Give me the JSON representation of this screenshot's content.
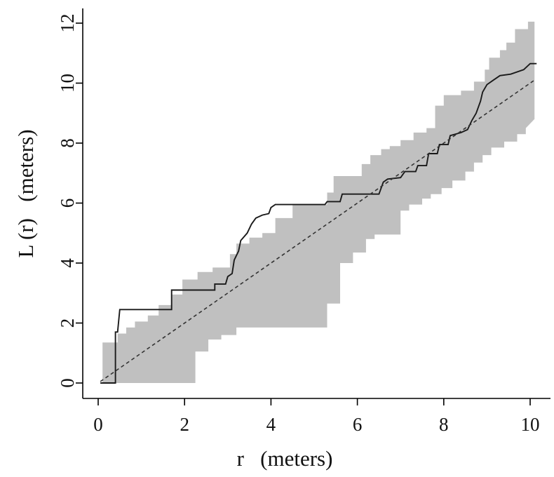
{
  "chart_data": {
    "type": "line",
    "title": "",
    "xlabel": "r   (meters)",
    "ylabel": "L (r)   (meters)",
    "xlim": [
      -0.5,
      10.5
    ],
    "ylim": [
      -0.5,
      12.3
    ],
    "xticks": [
      0,
      2,
      4,
      6,
      8,
      10
    ],
    "yticks": [
      0,
      2,
      4,
      6,
      8,
      10,
      12
    ],
    "x_tick_labels": [
      "0",
      "2",
      "4",
      "6",
      "8",
      "10"
    ],
    "y_tick_labels": [
      "0",
      "2",
      "4",
      "6",
      "8",
      "10",
      "12"
    ],
    "grid": false,
    "legend": "none",
    "colors": {
      "envelope": "#c0c0c0",
      "observed": "#1a1a1a",
      "expected": "#333333"
    },
    "envelope_upper": [
      [
        0.1,
        1.35
      ],
      [
        0.45,
        1.35
      ],
      [
        0.45,
        1.65
      ],
      [
        0.65,
        1.65
      ],
      [
        0.65,
        1.85
      ],
      [
        0.85,
        1.85
      ],
      [
        0.85,
        2.05
      ],
      [
        1.15,
        2.05
      ],
      [
        1.15,
        2.25
      ],
      [
        1.4,
        2.25
      ],
      [
        1.4,
        2.6
      ],
      [
        1.7,
        2.6
      ],
      [
        1.7,
        2.95
      ],
      [
        1.95,
        2.95
      ],
      [
        1.95,
        3.45
      ],
      [
        2.3,
        3.45
      ],
      [
        2.3,
        3.7
      ],
      [
        2.65,
        3.7
      ],
      [
        2.65,
        3.85
      ],
      [
        3.05,
        3.85
      ],
      [
        3.05,
        4.3
      ],
      [
        3.2,
        4.3
      ],
      [
        3.2,
        4.65
      ],
      [
        3.5,
        4.65
      ],
      [
        3.5,
        4.85
      ],
      [
        3.8,
        4.85
      ],
      [
        3.8,
        5.0
      ],
      [
        4.1,
        5.0
      ],
      [
        4.1,
        5.5
      ],
      [
        4.5,
        5.5
      ],
      [
        4.5,
        5.95
      ],
      [
        5.3,
        5.95
      ],
      [
        5.3,
        6.35
      ],
      [
        5.45,
        6.35
      ],
      [
        5.45,
        6.9
      ],
      [
        6.1,
        6.9
      ],
      [
        6.1,
        7.3
      ],
      [
        6.3,
        7.3
      ],
      [
        6.3,
        7.6
      ],
      [
        6.55,
        7.6
      ],
      [
        6.55,
        7.8
      ],
      [
        6.75,
        7.8
      ],
      [
        6.75,
        7.9
      ],
      [
        7.0,
        7.9
      ],
      [
        7.0,
        8.1
      ],
      [
        7.3,
        8.1
      ],
      [
        7.3,
        8.35
      ],
      [
        7.6,
        8.35
      ],
      [
        7.6,
        8.5
      ],
      [
        7.8,
        8.5
      ],
      [
        7.8,
        8.9
      ],
      [
        7.8,
        9.25
      ],
      [
        8.0,
        9.25
      ],
      [
        8.0,
        9.6
      ],
      [
        8.4,
        9.6
      ],
      [
        8.4,
        9.75
      ],
      [
        8.7,
        9.75
      ],
      [
        8.7,
        10.05
      ],
      [
        8.95,
        10.05
      ],
      [
        8.95,
        10.45
      ],
      [
        9.05,
        10.45
      ],
      [
        9.05,
        10.85
      ],
      [
        9.3,
        10.85
      ],
      [
        9.3,
        11.1
      ],
      [
        9.45,
        11.1
      ],
      [
        9.45,
        11.35
      ],
      [
        9.65,
        11.35
      ],
      [
        9.65,
        11.8
      ],
      [
        9.95,
        11.8
      ],
      [
        9.95,
        12.05
      ],
      [
        10.1,
        12.05
      ]
    ],
    "envelope_lower": [
      [
        0.1,
        0.0
      ],
      [
        2.25,
        0.0
      ],
      [
        2.25,
        1.05
      ],
      [
        2.55,
        1.05
      ],
      [
        2.55,
        1.45
      ],
      [
        2.85,
        1.45
      ],
      [
        2.85,
        1.6
      ],
      [
        3.2,
        1.6
      ],
      [
        3.2,
        1.85
      ],
      [
        5.3,
        1.85
      ],
      [
        5.3,
        2.65
      ],
      [
        5.6,
        2.65
      ],
      [
        5.6,
        4.0
      ],
      [
        5.9,
        4.0
      ],
      [
        5.9,
        4.35
      ],
      [
        6.2,
        4.35
      ],
      [
        6.2,
        4.8
      ],
      [
        6.4,
        4.8
      ],
      [
        6.4,
        4.95
      ],
      [
        7.0,
        4.95
      ],
      [
        7.0,
        5.75
      ],
      [
        7.2,
        5.75
      ],
      [
        7.2,
        5.95
      ],
      [
        7.5,
        5.95
      ],
      [
        7.5,
        6.15
      ],
      [
        7.7,
        6.15
      ],
      [
        7.7,
        6.3
      ],
      [
        7.95,
        6.3
      ],
      [
        7.95,
        6.5
      ],
      [
        8.2,
        6.5
      ],
      [
        8.2,
        6.75
      ],
      [
        8.5,
        6.75
      ],
      [
        8.5,
        7.05
      ],
      [
        8.7,
        7.05
      ],
      [
        8.7,
        7.35
      ],
      [
        8.9,
        7.35
      ],
      [
        8.9,
        7.6
      ],
      [
        9.1,
        7.6
      ],
      [
        9.1,
        7.85
      ],
      [
        9.4,
        7.85
      ],
      [
        9.4,
        8.05
      ],
      [
        9.7,
        8.05
      ],
      [
        9.7,
        8.3
      ],
      [
        9.9,
        8.3
      ],
      [
        9.9,
        8.5
      ],
      [
        10.1,
        8.8
      ]
    ],
    "series": [
      {
        "style": "solid",
        "points": [
          [
            0.05,
            0.0
          ],
          [
            0.4,
            0.0
          ],
          [
            0.4,
            1.7
          ],
          [
            0.45,
            1.7
          ],
          [
            0.5,
            2.45
          ],
          [
            1.7,
            2.45
          ],
          [
            1.7,
            3.1
          ],
          [
            2.7,
            3.1
          ],
          [
            2.7,
            3.3
          ],
          [
            2.95,
            3.3
          ],
          [
            3.0,
            3.55
          ],
          [
            3.1,
            3.65
          ],
          [
            3.15,
            4.1
          ],
          [
            3.25,
            4.4
          ],
          [
            3.3,
            4.75
          ],
          [
            3.45,
            5.0
          ],
          [
            3.55,
            5.3
          ],
          [
            3.65,
            5.5
          ],
          [
            3.8,
            5.6
          ],
          [
            3.95,
            5.65
          ],
          [
            4.0,
            5.85
          ],
          [
            4.1,
            5.95
          ],
          [
            5.25,
            5.95
          ],
          [
            5.3,
            6.05
          ],
          [
            5.6,
            6.05
          ],
          [
            5.65,
            6.3
          ],
          [
            6.5,
            6.3
          ],
          [
            6.6,
            6.7
          ],
          [
            6.7,
            6.8
          ],
          [
            7.0,
            6.85
          ],
          [
            7.1,
            7.05
          ],
          [
            7.35,
            7.05
          ],
          [
            7.4,
            7.25
          ],
          [
            7.6,
            7.25
          ],
          [
            7.65,
            7.65
          ],
          [
            7.85,
            7.65
          ],
          [
            7.9,
            7.95
          ],
          [
            8.1,
            7.95
          ],
          [
            8.15,
            8.25
          ],
          [
            8.4,
            8.35
          ],
          [
            8.55,
            8.45
          ],
          [
            8.65,
            8.75
          ],
          [
            8.75,
            9.0
          ],
          [
            8.85,
            9.4
          ],
          [
            8.9,
            9.7
          ],
          [
            9.0,
            9.95
          ],
          [
            9.15,
            10.1
          ],
          [
            9.3,
            10.25
          ],
          [
            9.55,
            10.3
          ],
          [
            9.85,
            10.45
          ],
          [
            10.0,
            10.65
          ],
          [
            10.15,
            10.65
          ]
        ]
      },
      {
        "style": "dashed",
        "points": [
          [
            0.05,
            0.05
          ],
          [
            10.1,
            10.1
          ]
        ]
      }
    ]
  }
}
